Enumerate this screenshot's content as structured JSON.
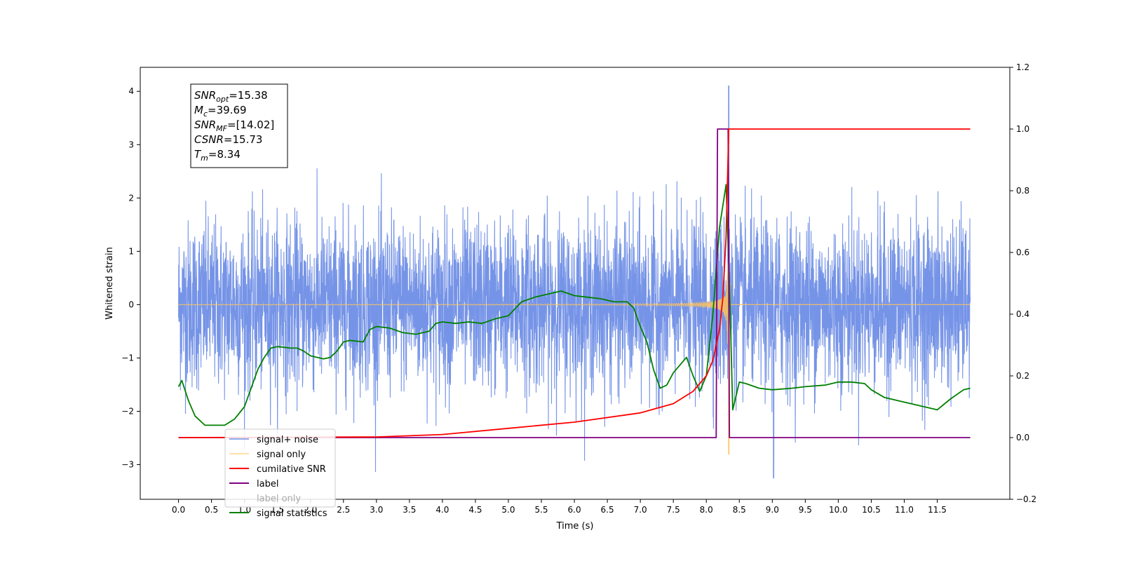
{
  "chart_data": {
    "type": "line",
    "xlabel": "Time (s)",
    "ylabel_left": "Whitened strain",
    "ylabel_right": "",
    "xlim": [
      -0.58,
      12.6
    ],
    "ylim_left": [
      -3.65,
      4.45
    ],
    "ylim_right": [
      -0.2,
      1.2
    ],
    "x_ticks": [
      "0.0",
      "0.5",
      "1.0",
      "1.5",
      "2.0",
      "2.5",
      "3.0",
      "3.5",
      "4.0",
      "4.5",
      "5.0",
      "5.5",
      "6.0",
      "6.5",
      "7.0",
      "7.5",
      "8.0",
      "8.5",
      "9.0",
      "9.5",
      "10.0",
      "10.5",
      "11.0",
      "11.5"
    ],
    "y_ticks_left": [
      "−3",
      "−2",
      "−1",
      "0",
      "1",
      "2",
      "3",
      "4"
    ],
    "y_ticks_right": [
      "−0.2",
      "0.0",
      "0.2",
      "0.4",
      "0.6",
      "0.8",
      "1.0",
      "1.2"
    ],
    "grid": false,
    "legend_position": "lower-left",
    "annotation": {
      "lines": [
        {
          "sym": "SNR",
          "sub": "opt",
          "val": "=15.38"
        },
        {
          "sym": "M",
          "sub": "c",
          "val": "=39.69"
        },
        {
          "sym": "SNR",
          "sub": "MF",
          "val": "=[14.02]"
        },
        {
          "sym": "CSNR",
          "sub": "",
          "val": "=15.73"
        },
        {
          "sym": "T",
          "sub": "m",
          "val": "=8.34"
        }
      ]
    },
    "series": [
      {
        "name": "signal+ noise",
        "color": "#6f8ee6",
        "axis": "left",
        "style": "dense noise, approx. ±1.2 std, peaks to 4.1 at t≈8.34, min −3.3 at t≈9.0",
        "peak": [
          8.34,
          4.1
        ],
        "range": [
          0.0,
          12.0
        ]
      },
      {
        "name": "signal only",
        "color": "#ffc35a",
        "axis": "left",
        "style": "chirp growing toward merger at t≈8.34, min −2.8",
        "range": [
          0.0,
          12.0
        ]
      },
      {
        "name": "cumilative SNR",
        "color": "#ff0000",
        "axis": "right",
        "points": [
          [
            0.0,
            0.0
          ],
          [
            3.0,
            0.002
          ],
          [
            4.0,
            0.01
          ],
          [
            5.0,
            0.03
          ],
          [
            6.0,
            0.05
          ],
          [
            7.0,
            0.08
          ],
          [
            7.5,
            0.11
          ],
          [
            7.8,
            0.15
          ],
          [
            8.0,
            0.2
          ],
          [
            8.1,
            0.25
          ],
          [
            8.2,
            0.35
          ],
          [
            8.25,
            0.45
          ],
          [
            8.3,
            0.65
          ],
          [
            8.34,
            1.0
          ],
          [
            12.0,
            1.0
          ]
        ]
      },
      {
        "name": "label",
        "color": "#800080",
        "axis": "right",
        "points": [
          [
            0.0,
            0.0
          ],
          [
            8.15,
            0.0
          ],
          [
            8.17,
            1.0
          ],
          [
            8.33,
            1.0
          ],
          [
            8.35,
            0.0
          ],
          [
            12.0,
            0.0
          ]
        ]
      },
      {
        "name": "label only",
        "color": "#d0d0d0",
        "axis": "right",
        "hidden_behind_legend": true,
        "points": []
      },
      {
        "name": "signal statistics",
        "color": "#008000",
        "axis": "right",
        "points": [
          [
            0.0,
            0.165
          ],
          [
            0.05,
            0.185
          ],
          [
            0.15,
            0.12
          ],
          [
            0.25,
            0.07
          ],
          [
            0.4,
            0.04
          ],
          [
            0.55,
            0.04
          ],
          [
            0.7,
            0.04
          ],
          [
            0.85,
            0.06
          ],
          [
            1.0,
            0.1
          ],
          [
            1.1,
            0.16
          ],
          [
            1.2,
            0.22
          ],
          [
            1.3,
            0.26
          ],
          [
            1.4,
            0.29
          ],
          [
            1.5,
            0.295
          ],
          [
            1.7,
            0.29
          ],
          [
            1.8,
            0.29
          ],
          [
            1.9,
            0.28
          ],
          [
            2.0,
            0.265
          ],
          [
            2.2,
            0.255
          ],
          [
            2.3,
            0.26
          ],
          [
            2.4,
            0.28
          ],
          [
            2.5,
            0.31
          ],
          [
            2.6,
            0.315
          ],
          [
            2.8,
            0.31
          ],
          [
            2.9,
            0.35
          ],
          [
            3.0,
            0.36
          ],
          [
            3.2,
            0.355
          ],
          [
            3.4,
            0.34
          ],
          [
            3.6,
            0.335
          ],
          [
            3.8,
            0.345
          ],
          [
            3.9,
            0.37
          ],
          [
            4.0,
            0.375
          ],
          [
            4.2,
            0.37
          ],
          [
            4.4,
            0.375
          ],
          [
            4.6,
            0.37
          ],
          [
            4.8,
            0.385
          ],
          [
            5.0,
            0.395
          ],
          [
            5.2,
            0.44
          ],
          [
            5.4,
            0.455
          ],
          [
            5.6,
            0.465
          ],
          [
            5.8,
            0.475
          ],
          [
            6.0,
            0.46
          ],
          [
            6.2,
            0.455
          ],
          [
            6.4,
            0.45
          ],
          [
            6.6,
            0.44
          ],
          [
            6.8,
            0.44
          ],
          [
            6.9,
            0.42
          ],
          [
            7.0,
            0.36
          ],
          [
            7.1,
            0.31
          ],
          [
            7.2,
            0.22
          ],
          [
            7.3,
            0.16
          ],
          [
            7.4,
            0.17
          ],
          [
            7.5,
            0.21
          ],
          [
            7.7,
            0.26
          ],
          [
            7.8,
            0.2
          ],
          [
            7.9,
            0.15
          ],
          [
            8.0,
            0.2
          ],
          [
            8.1,
            0.4
          ],
          [
            8.2,
            0.68
          ],
          [
            8.3,
            0.82
          ],
          [
            8.35,
            0.5
          ],
          [
            8.4,
            0.09
          ],
          [
            8.5,
            0.18
          ],
          [
            8.6,
            0.175
          ],
          [
            8.8,
            0.16
          ],
          [
            9.0,
            0.155
          ],
          [
            9.3,
            0.16
          ],
          [
            9.5,
            0.165
          ],
          [
            9.8,
            0.17
          ],
          [
            10.0,
            0.18
          ],
          [
            10.2,
            0.18
          ],
          [
            10.4,
            0.175
          ],
          [
            10.5,
            0.155
          ],
          [
            10.7,
            0.13
          ],
          [
            10.9,
            0.12
          ],
          [
            11.1,
            0.11
          ],
          [
            11.3,
            0.1
          ],
          [
            11.5,
            0.09
          ],
          [
            11.7,
            0.125
          ],
          [
            11.9,
            0.155
          ],
          [
            12.0,
            0.16
          ]
        ]
      }
    ]
  }
}
